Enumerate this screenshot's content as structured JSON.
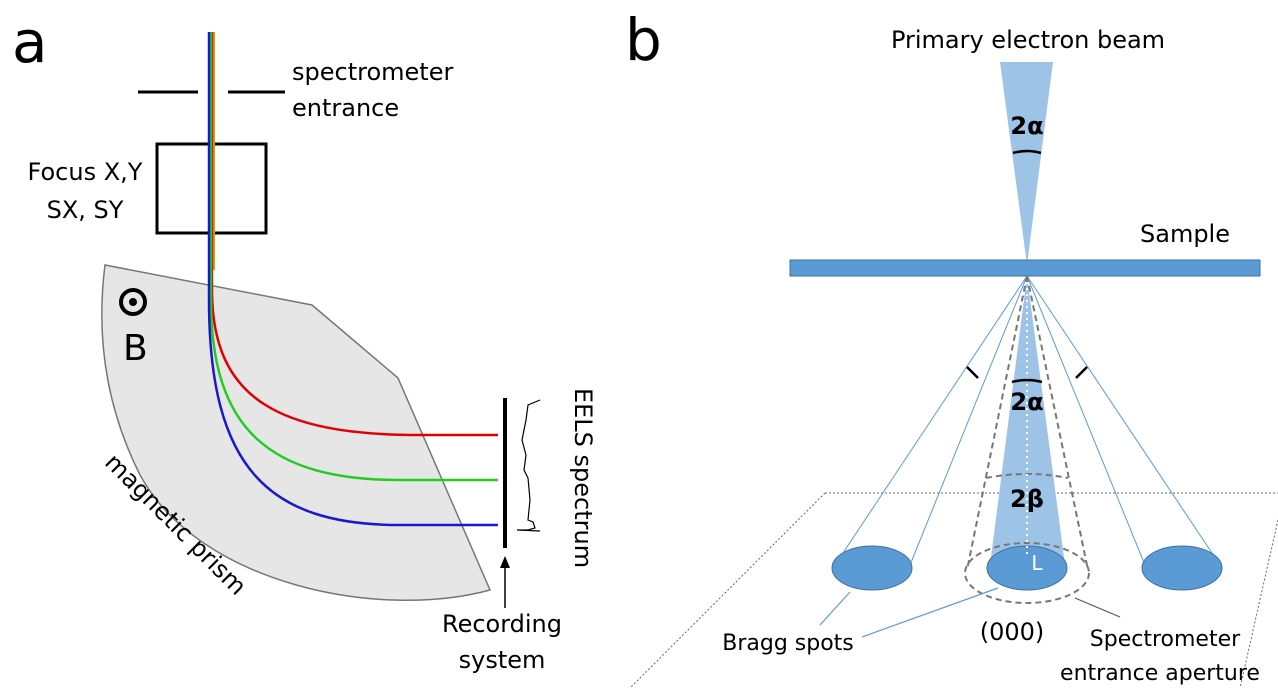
{
  "panel_a": {
    "label": "a",
    "entrance": [
      "spectrometer",
      "entrance"
    ],
    "focus": [
      "Focus X,Y",
      "SX, SY"
    ],
    "field": "B",
    "prism": "magnetic prism",
    "spectrum": "EELS spectrum",
    "recording": [
      "Recording",
      "system"
    ]
  },
  "panel_b": {
    "label": "b",
    "beam": "Primary electron beam",
    "alpha_top": "2α",
    "sample": "Sample",
    "alpha_bottom": "2α",
    "beta": "2β",
    "length": "L",
    "bragg": "Bragg spots",
    "central": "(000)",
    "aperture": [
      "Spectrometer",
      "entrance aperture"
    ]
  }
}
